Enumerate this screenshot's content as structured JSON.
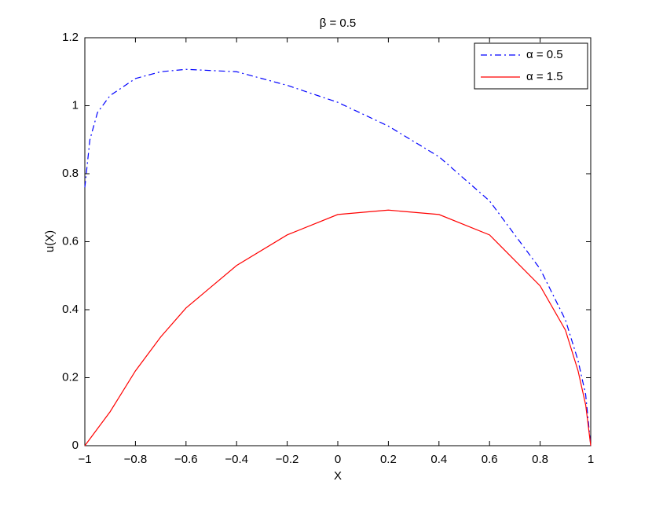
{
  "chart_data": {
    "type": "line",
    "title": "β = 0.5",
    "x_label": "X",
    "y_label": "u(X)",
    "x": [
      -1,
      -0.98,
      -0.95,
      -0.9,
      -0.8,
      -0.7,
      -0.6,
      -0.4,
      -0.2,
      0,
      0.2,
      0.4,
      0.6,
      0.8,
      0.9,
      0.95,
      0.98,
      1
    ],
    "series": [
      {
        "name": "α = 0.5",
        "color": "#0000ff",
        "linestyle": "dashdot",
        "values": [
          0.76,
          0.9,
          0.98,
          1.03,
          1.08,
          1.1,
          1.107,
          1.1,
          1.06,
          1.01,
          0.94,
          0.85,
          0.72,
          0.52,
          0.37,
          0.25,
          0.15,
          0
        ]
      },
      {
        "name": "α = 1.5",
        "color": "#ff0000",
        "linestyle": "solid",
        "values": [
          0,
          0.02,
          0.05,
          0.1,
          0.22,
          0.32,
          0.405,
          0.53,
          0.62,
          0.68,
          0.693,
          0.68,
          0.62,
          0.47,
          0.34,
          0.22,
          0.12,
          0
        ]
      }
    ],
    "xlim": [
      -1,
      1
    ],
    "ylim": [
      0,
      1.2
    ],
    "xticks": [
      {
        "value": -1,
        "label": "−1"
      },
      {
        "value": -0.8,
        "label": "−0.8"
      },
      {
        "value": -0.6,
        "label": "−0.6"
      },
      {
        "value": -0.4,
        "label": "−0.4"
      },
      {
        "value": -0.2,
        "label": "−0.2"
      },
      0,
      0.2,
      0.4,
      0.6,
      0.8,
      1
    ],
    "yticks": [
      0,
      0.2,
      0.4,
      0.6,
      0.8,
      1,
      1.2
    ],
    "grid": false,
    "legend": "top-right"
  }
}
